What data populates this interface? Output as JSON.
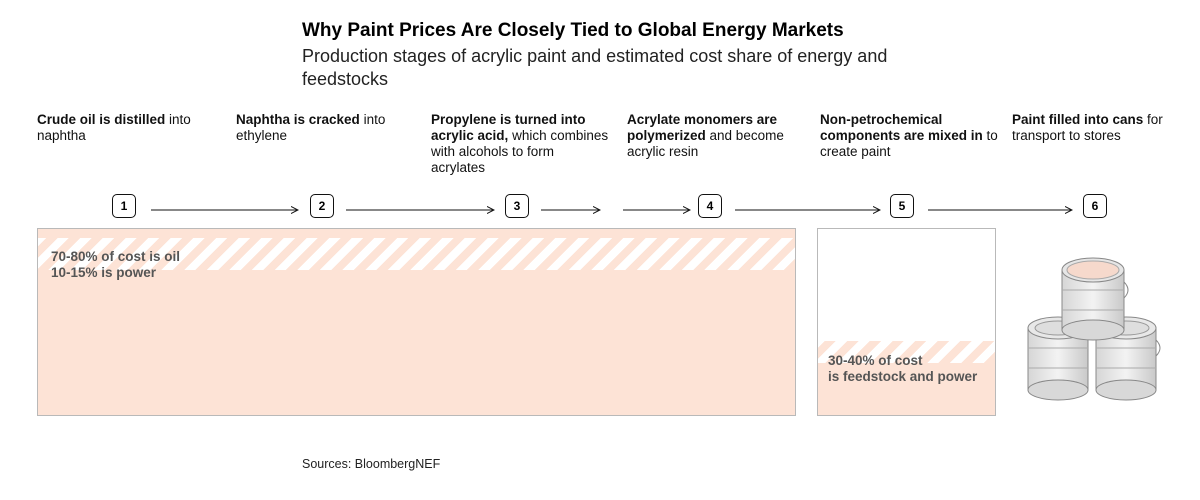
{
  "title": "Why Paint Prices Are Closely Tied to Global Energy Markets",
  "subtitle": "Production stages of acrylic paint and estimated cost share of energy and feedstocks",
  "stages": [
    {
      "number": "1",
      "bold": "Crude oil is distilled",
      "rest": " into naphtha"
    },
    {
      "number": "2",
      "bold": "Naphtha is cracked",
      "rest": " into ethylene"
    },
    {
      "number": "3",
      "bold": "Propylene is turned into acrylic acid,",
      "rest": " which combines with alcohols to form acrylates"
    },
    {
      "number": "4",
      "bold": "Acrylate monomers are polymerized",
      "rest": " and become acrylic resin"
    },
    {
      "number": "5",
      "bold": "Non-petrochemical components are mixed in",
      "rest": " to create paint"
    },
    {
      "number": "6",
      "bold": "Paint filled into cans",
      "rest": " for transport to stores"
    }
  ],
  "cost_notes": {
    "petro": {
      "line1": "70-80% of cost is oil",
      "line2": "10-15% is power"
    },
    "mix": {
      "line1": "30-40% of cost",
      "line2": "is feedstock and power"
    }
  },
  "colors": {
    "fill": "#fde3d6",
    "border": "#b9b9b9"
  },
  "source": "Sources: BloombergNEF"
}
